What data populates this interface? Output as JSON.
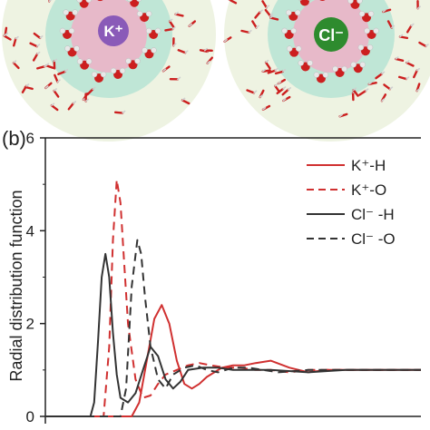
{
  "panel_b_label": "(b)",
  "ion_labels": [
    "K⁺",
    "Cl⁻"
  ],
  "colors": {
    "red": "#d03030",
    "dark": "#333333",
    "axis": "#222222",
    "water_o": "#cc1f1f",
    "water_h": "#e8e8e8",
    "k_ion": "#8a5ab8",
    "cl_ion": "#2e8b2e",
    "shell_inner": "#e7b9c9",
    "shell_middle": "#bfe6d6",
    "shell_outer": "#eef3e2"
  },
  "chart_data": {
    "type": "line",
    "title": "",
    "xlabel": "",
    "ylabel": "Radial distribution function",
    "ylim": [
      0,
      6
    ],
    "xlim": [
      0,
      10
    ],
    "yticks": [
      "0",
      "2",
      "4",
      "6"
    ],
    "grid": false,
    "legend_position": "top-right",
    "series": [
      {
        "name": "K⁺-H",
        "color": "#d03030",
        "style": "solid",
        "x": [
          0,
          2.3,
          2.5,
          2.7,
          2.9,
          3.1,
          3.3,
          3.5,
          3.7,
          3.9,
          4.1,
          4.3,
          4.5,
          4.7,
          5.0,
          5.3,
          5.6,
          6.0,
          6.5,
          7.0,
          7.5,
          8.0,
          9.0,
          10.0
        ],
        "y": [
          0,
          0,
          0.3,
          1.2,
          2.1,
          2.4,
          2.0,
          1.2,
          0.7,
          0.6,
          0.7,
          0.85,
          0.95,
          1.05,
          1.1,
          1.1,
          1.15,
          1.2,
          1.05,
          0.95,
          1.0,
          1.0,
          1.0,
          1.0
        ]
      },
      {
        "name": "K⁺-O",
        "color": "#d03030",
        "style": "dashed",
        "x": [
          0,
          1.55,
          1.7,
          1.8,
          1.9,
          2.0,
          2.1,
          2.2,
          2.4,
          2.6,
          2.8,
          3.0,
          3.2,
          3.5,
          3.8,
          4.1,
          4.4,
          4.8,
          5.2,
          5.6,
          6.0,
          6.5,
          7.0,
          8.0,
          9.0,
          10.0
        ],
        "y": [
          0,
          0,
          1.5,
          3.8,
          5.1,
          4.6,
          3.3,
          2.0,
          0.8,
          0.4,
          0.45,
          0.7,
          0.9,
          1.0,
          1.1,
          1.15,
          1.1,
          1.05,
          1.05,
          1.0,
          1.0,
          0.95,
          1.0,
          1.0,
          1.0,
          1.0
        ]
      },
      {
        "name": "Cl⁻ -H",
        "color": "#333333",
        "style": "solid",
        "x": [
          0,
          1.2,
          1.3,
          1.4,
          1.5,
          1.6,
          1.7,
          1.8,
          1.9,
          2.0,
          2.2,
          2.4,
          2.6,
          2.8,
          3.0,
          3.2,
          3.4,
          3.6,
          3.8,
          4.2,
          4.6,
          5.0,
          5.5,
          6.0,
          7.0,
          8.0,
          9.0,
          10.0
        ],
        "y": [
          0,
          0,
          0.3,
          1.6,
          3.0,
          3.5,
          3.0,
          1.8,
          0.9,
          0.4,
          0.3,
          0.5,
          1.0,
          1.5,
          1.3,
          0.8,
          0.6,
          0.75,
          1.0,
          1.05,
          1.05,
          1.0,
          1.0,
          1.0,
          0.95,
          1.0,
          1.0,
          1.0
        ]
      },
      {
        "name": "Cl⁻ -O",
        "color": "#333333",
        "style": "dashed",
        "x": [
          0,
          2.0,
          2.15,
          2.3,
          2.45,
          2.55,
          2.65,
          2.8,
          3.0,
          3.2,
          3.4,
          3.7,
          4.0,
          4.3,
          4.6,
          5.0,
          5.4,
          5.8,
          6.2,
          7.0,
          8.0,
          9.0,
          10.0
        ],
        "y": [
          0,
          0,
          0.6,
          2.8,
          3.8,
          3.5,
          2.6,
          1.5,
          0.8,
          0.6,
          0.9,
          1.05,
          1.1,
          1.0,
          0.95,
          1.05,
          1.05,
          1.0,
          0.95,
          1.0,
          1.0,
          1.0,
          1.0
        ]
      }
    ]
  }
}
